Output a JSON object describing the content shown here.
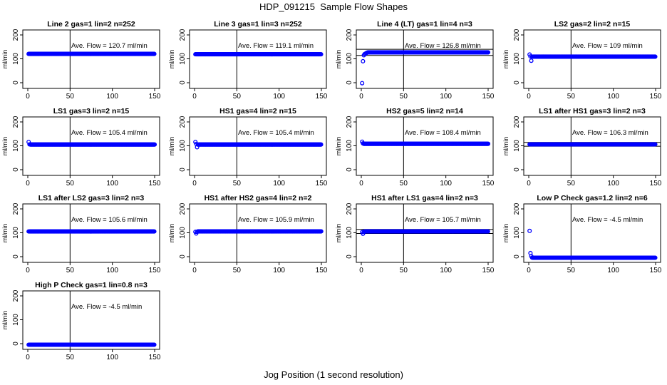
{
  "title": "HDP_091215  Sample Flow Shapes",
  "xlabel": "Jog Position (1 second resolution)",
  "colors": {
    "points": "#0000ff",
    "axes": "#000000"
  },
  "chart_data": [
    {
      "type": "scatter",
      "title": "Line 2 gas=1 lin=2 n=252",
      "ylabel": "ml/min",
      "xlim": [
        0,
        150
      ],
      "ylim": [
        0,
        200
      ],
      "xticks": [
        0,
        50,
        100,
        150
      ],
      "yticks": [
        0,
        100,
        200
      ],
      "annotation": "Ave. Flow =  120.7  ml/min",
      "avg": 120.7,
      "vline": 50,
      "hlines": [],
      "x": [
        1,
        150
      ],
      "y": [
        120.7,
        120.7
      ]
    },
    {
      "type": "scatter",
      "title": "Line 3 gas=1 lin=3 n=252",
      "ylabel": "ml/min",
      "xlim": [
        0,
        150
      ],
      "ylim": [
        0,
        200
      ],
      "xticks": [
        0,
        50,
        100,
        150
      ],
      "yticks": [
        0,
        100,
        200
      ],
      "annotation": "Ave. Flow =  119.1  ml/min",
      "avg": 119.1,
      "vline": 50,
      "hlines": [],
      "x": [
        1,
        150
      ],
      "y": [
        119.1,
        119.1
      ]
    },
    {
      "type": "scatter",
      "title": "Line 4 (LT) gas=1 lin=4 n=3",
      "ylabel": "ml/min",
      "xlim": [
        0,
        150
      ],
      "ylim": [
        0,
        200
      ],
      "xticks": [
        0,
        50,
        100,
        150
      ],
      "yticks": [
        0,
        100,
        200
      ],
      "annotation": "Ave. Flow =  126.8  ml/min",
      "avg": 126.8,
      "vline": 50,
      "hlines": [
        114,
        140
      ],
      "x": [
        1,
        2,
        3,
        4,
        5,
        6,
        7,
        8,
        150
      ],
      "y": [
        -2,
        90,
        115,
        120,
        122,
        124,
        126,
        127,
        127
      ]
    },
    {
      "type": "scatter",
      "title": "LS2 gas=2 lin=2 n=15",
      "ylabel": "ml/min",
      "xlim": [
        0,
        150
      ],
      "ylim": [
        0,
        200
      ],
      "xticks": [
        0,
        50,
        100,
        150
      ],
      "yticks": [
        0,
        100,
        200
      ],
      "annotation": "Ave. Flow =  109  ml/min",
      "avg": 109,
      "vline": 50,
      "hlines": [],
      "x": [
        1,
        2,
        3,
        4,
        150
      ],
      "y": [
        118,
        110,
        92,
        109,
        109
      ]
    },
    {
      "type": "scatter",
      "title": "LS1 gas=3 lin=2 n=15",
      "ylabel": "ml/min",
      "xlim": [
        0,
        150
      ],
      "ylim": [
        0,
        200
      ],
      "xticks": [
        0,
        50,
        100,
        150
      ],
      "yticks": [
        0,
        100,
        200
      ],
      "annotation": "Ave. Flow =  105.4  ml/min",
      "avg": 105.4,
      "vline": 50,
      "hlines": [],
      "x": [
        1,
        2,
        150
      ],
      "y": [
        116,
        106,
        105.4
      ]
    },
    {
      "type": "scatter",
      "title": "HS1 gas=4 lin=2 n=15",
      "ylabel": "ml/min",
      "xlim": [
        0,
        150
      ],
      "ylim": [
        0,
        200
      ],
      "xticks": [
        0,
        50,
        100,
        150
      ],
      "yticks": [
        0,
        100,
        200
      ],
      "annotation": "Ave. Flow =  105.4  ml/min",
      "avg": 105.4,
      "vline": 50,
      "hlines": [],
      "x": [
        1,
        2,
        3,
        4,
        150
      ],
      "y": [
        116,
        108,
        94,
        105,
        105.4
      ]
    },
    {
      "type": "scatter",
      "title": "HS2 gas=5 lin=2 n=14",
      "ylabel": "ml/min",
      "xlim": [
        0,
        150
      ],
      "ylim": [
        0,
        200
      ],
      "xticks": [
        0,
        50,
        100,
        150
      ],
      "yticks": [
        0,
        100,
        200
      ],
      "annotation": "Ave. Flow =  108.4  ml/min",
      "avg": 108.4,
      "vline": 50,
      "hlines": [],
      "x": [
        1,
        2,
        150
      ],
      "y": [
        117,
        110,
        108.4
      ]
    },
    {
      "type": "scatter",
      "title": "LS1 after HS1 gas=3 lin=2 n=3",
      "ylabel": "ml/min",
      "xlim": [
        0,
        150
      ],
      "ylim": [
        0,
        200
      ],
      "xticks": [
        0,
        50,
        100,
        150
      ],
      "yticks": [
        0,
        100,
        200
      ],
      "annotation": "Ave. Flow =  106.3  ml/min",
      "avg": 106.3,
      "vline": 50,
      "hlines": [
        98,
        114
      ],
      "x": [
        1,
        150
      ],
      "y": [
        106.3,
        106.3
      ]
    },
    {
      "type": "scatter",
      "title": "LS1 after LS2 gas=3 lin=2 n=3",
      "ylabel": "ml/min",
      "xlim": [
        0,
        150
      ],
      "ylim": [
        0,
        200
      ],
      "xticks": [
        0,
        50,
        100,
        150
      ],
      "yticks": [
        0,
        100,
        200
      ],
      "annotation": "Ave. Flow =  105.6  ml/min",
      "avg": 105.6,
      "vline": 50,
      "hlines": [],
      "x": [
        1,
        150
      ],
      "y": [
        105.6,
        105.6
      ]
    },
    {
      "type": "scatter",
      "title": "HS1 after HS2 gas=4 lin=2 n=2",
      "ylabel": "ml/min",
      "xlim": [
        0,
        150
      ],
      "ylim": [
        0,
        200
      ],
      "xticks": [
        0,
        50,
        100,
        150
      ],
      "yticks": [
        0,
        100,
        200
      ],
      "annotation": "Ave. Flow =  105.9  ml/min",
      "avg": 105.9,
      "vline": 50,
      "hlines": [],
      "x": [
        1,
        2,
        3,
        150
      ],
      "y": [
        104,
        97,
        104,
        105.9
      ]
    },
    {
      "type": "scatter",
      "title": "HS1 after LS1 gas=4 lin=2 n=3",
      "ylabel": "ml/min",
      "xlim": [
        0,
        150
      ],
      "ylim": [
        0,
        200
      ],
      "xticks": [
        0,
        50,
        100,
        150
      ],
      "yticks": [
        0,
        100,
        200
      ],
      "annotation": "Ave. Flow =  105.7  ml/min",
      "avg": 105.7,
      "vline": 50,
      "hlines": [
        97,
        114
      ],
      "x": [
        1,
        2,
        3,
        150
      ],
      "y": [
        103,
        96,
        104,
        105.7
      ]
    },
    {
      "type": "scatter",
      "title": "Low P Check gas=1.2 lin=2 n=6",
      "ylabel": "ml/min",
      "xlim": [
        0,
        150
      ],
      "ylim": [
        0,
        200
      ],
      "xticks": [
        0,
        50,
        100,
        150
      ],
      "yticks": [
        0,
        100,
        200
      ],
      "annotation": "Ave. Flow =  -4.5  ml/min",
      "avg": -4.5,
      "vline": 50,
      "hlines": [],
      "x": [
        1,
        2,
        3,
        4,
        150
      ],
      "y": [
        108,
        15,
        2,
        -4,
        -4.5
      ]
    },
    {
      "type": "scatter",
      "title": "High P Check gas=1 lin=0.8 n=3",
      "ylabel": "ml/min",
      "xlim": [
        0,
        150
      ],
      "ylim": [
        0,
        200
      ],
      "xticks": [
        0,
        50,
        100,
        150
      ],
      "yticks": [
        0,
        100,
        200
      ],
      "annotation": "Ave. Flow =  -4.5  ml/min",
      "avg": -4.5,
      "vline": 50,
      "hlines": [],
      "x": [
        1,
        150
      ],
      "y": [
        -4.5,
        -4.5
      ]
    }
  ]
}
